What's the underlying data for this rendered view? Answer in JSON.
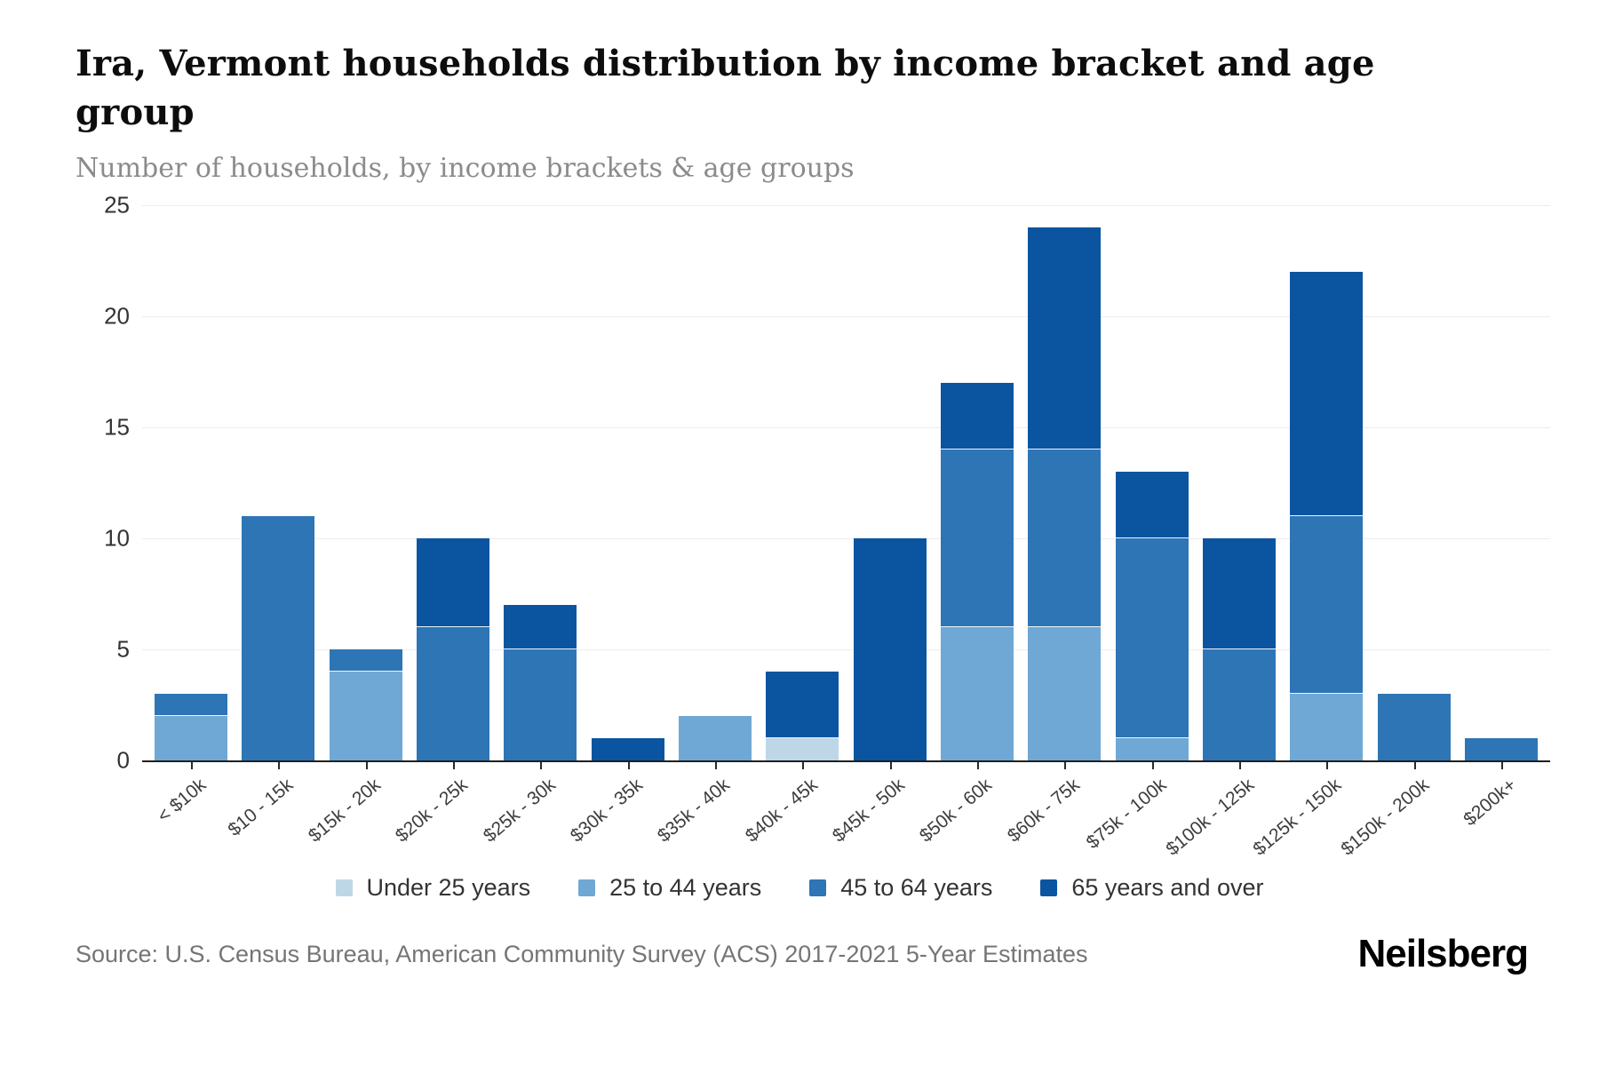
{
  "header": {
    "title": "Ira, Vermont households distribution by income bracket and age group",
    "subtitle": "Number of households, by income brackets & age groups"
  },
  "footer": {
    "source": "Source: U.S. Census Bureau, American Community Survey (ACS) 2017-2021 5-Year Estimates",
    "logo": "Neilsberg"
  },
  "chart_data": {
    "type": "bar",
    "stacked": true,
    "title": "Ira, Vermont households distribution by income bracket and age group",
    "subtitle": "Number of households, by income brackets & age groups",
    "xlabel": "",
    "ylabel": "Number of households",
    "ylim": [
      0,
      25
    ],
    "yticks": [
      0,
      5,
      10,
      15,
      20,
      25
    ],
    "grid": true,
    "legend_position": "bottom",
    "categories": [
      "< $10k",
      "$10 - 15k",
      "$15k - 20k",
      "$20k - 25k",
      "$25k - 30k",
      "$30k - 35k",
      "$35k - 40k",
      "$40k - 45k",
      "$45k - 50k",
      "$50k - 60k",
      "$60k - 75k",
      "$75k - 100k",
      "$100k - 125k",
      "$125k - 150k",
      "$150k - 200k",
      "$200k+"
    ],
    "series": [
      {
        "name": "Under 25 years",
        "color": "#bdd7e7",
        "values": [
          0,
          0,
          0,
          0,
          0,
          0,
          0,
          1,
          0,
          0,
          0,
          0,
          0,
          0,
          0,
          0
        ]
      },
      {
        "name": "25 to 44 years",
        "color": "#6fa8d4",
        "values": [
          2,
          0,
          4,
          0,
          0,
          0,
          2,
          0,
          0,
          6,
          6,
          1,
          0,
          3,
          0,
          0
        ]
      },
      {
        "name": "45 to 64 years",
        "color": "#2e75b5",
        "values": [
          1,
          11,
          1,
          6,
          5,
          0,
          0,
          0,
          0,
          8,
          8,
          9,
          5,
          8,
          3,
          1
        ]
      },
      {
        "name": "65 years and over",
        "color": "#0b55a0",
        "values": [
          0,
          0,
          0,
          4,
          2,
          1,
          0,
          3,
          10,
          3,
          10,
          3,
          5,
          11,
          0,
          0
        ]
      }
    ],
    "totals": [
      3,
      11,
      5,
      10,
      7,
      1,
      2,
      4,
      10,
      17,
      24,
      13,
      10,
      22,
      3,
      1
    ]
  },
  "style": {
    "axis_color": "#1f1f1f",
    "grid_color": "#ececec",
    "accent_navy": "#0b55a0"
  }
}
